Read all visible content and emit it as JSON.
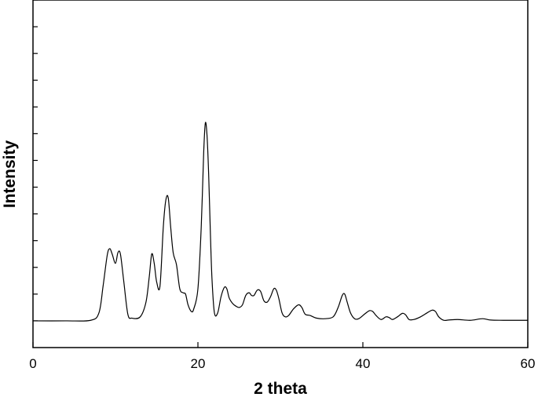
{
  "chart_data": {
    "type": "line",
    "title": "",
    "xlabel": "2 theta",
    "ylabel": "Intensity",
    "xlim": [
      0,
      60
    ],
    "ylim": [
      -1,
      12
    ],
    "x_ticks": [
      0,
      20,
      40,
      60
    ],
    "y_ticks_unlabeled": [
      0,
      1,
      2,
      3,
      4,
      5,
      6,
      7,
      8,
      9,
      10,
      11,
      12
    ],
    "grid": false,
    "legend": "none",
    "line_color": "#000000",
    "series": [
      {
        "x": [
          0,
          4,
          7,
          8,
          8.5,
          9,
          9.3,
          9.6,
          10,
          10.3,
          10.6,
          11,
          11.5,
          12,
          13,
          13.7,
          14.1,
          14.4,
          14.7,
          15,
          15.4,
          15.8,
          16.1,
          16.4,
          16.7,
          17,
          17.4,
          17.8,
          18.2,
          18.5,
          18.8,
          19.2,
          19.5,
          20,
          20.4,
          20.7,
          20.9,
          21.1,
          21.3,
          21.5,
          21.7,
          22,
          22.4,
          22.8,
          23.2,
          23.5,
          23.8,
          24.2,
          24.6,
          25,
          25.4,
          25.8,
          26.2,
          26.5,
          26.8,
          27.2,
          27.6,
          28,
          28.4,
          28.8,
          29.2,
          29.5,
          29.8,
          30.2,
          30.6,
          31,
          31.6,
          32.2,
          32.6,
          33,
          33.6,
          34.4,
          35.4,
          36.4,
          37,
          37.5,
          37.8,
          38.1,
          38.5,
          39,
          39.5,
          40.2,
          40.8,
          41.2,
          41.6,
          42.2,
          42.8,
          43.2,
          43.6,
          44.2,
          44.8,
          45.2,
          45.6,
          46.2,
          47,
          47.8,
          48.4,
          48.8,
          49.2,
          49.8,
          50.4,
          51.5,
          53,
          54.5,
          55.5,
          57,
          58.5,
          60
        ],
        "y": [
          0,
          0,
          0.02,
          0.3,
          1.3,
          2.45,
          2.7,
          2.5,
          2.15,
          2.55,
          2.5,
          1.5,
          0.25,
          0.1,
          0.15,
          0.7,
          1.65,
          2.5,
          2.15,
          1.45,
          1.3,
          3.5,
          4.5,
          4.6,
          3.5,
          2.55,
          2.1,
          1.2,
          1.05,
          1.0,
          0.6,
          0.35,
          0.45,
          1.2,
          3.5,
          6.3,
          7.4,
          6.95,
          5.5,
          3.4,
          1.6,
          0.3,
          0.3,
          0.9,
          1.25,
          1.2,
          0.85,
          0.65,
          0.55,
          0.5,
          0.6,
          0.95,
          1.05,
          0.95,
          0.95,
          1.15,
          1.1,
          0.75,
          0.7,
          0.9,
          1.2,
          1.15,
          0.85,
          0.3,
          0.15,
          0.2,
          0.45,
          0.6,
          0.5,
          0.25,
          0.2,
          0.1,
          0.08,
          0.15,
          0.5,
          0.95,
          1.0,
          0.7,
          0.3,
          0.08,
          0.08,
          0.25,
          0.38,
          0.35,
          0.2,
          0.05,
          0.15,
          0.12,
          0.05,
          0.15,
          0.28,
          0.22,
          0.05,
          0.05,
          0.15,
          0.3,
          0.4,
          0.35,
          0.15,
          0.02,
          0.03,
          0.05,
          0.02,
          0.08,
          0.03,
          0.02,
          0.02,
          0.02
        ]
      }
    ]
  }
}
